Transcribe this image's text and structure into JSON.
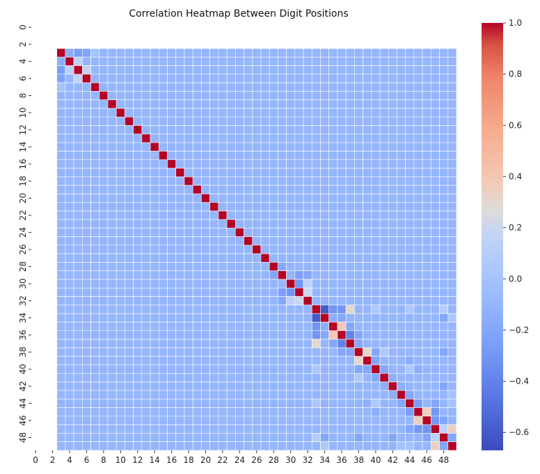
{
  "chart_data": {
    "type": "heatmap",
    "title": "Correlation Heatmap Between Digit Positions",
    "rows": 50,
    "cols": 50,
    "x_tick_labels": [
      "0",
      "2",
      "4",
      "6",
      "8",
      "10",
      "12",
      "14",
      "16",
      "18",
      "20",
      "22",
      "24",
      "26",
      "28",
      "30",
      "32",
      "34",
      "36",
      "38",
      "40",
      "42",
      "44",
      "46",
      "48"
    ],
    "y_tick_labels": [
      "0",
      "2",
      "4",
      "6",
      "8",
      "10",
      "12",
      "14",
      "16",
      "18",
      "20",
      "22",
      "24",
      "26",
      "28",
      "30",
      "32",
      "34",
      "36",
      "38",
      "40",
      "42",
      "44",
      "46",
      "48"
    ],
    "valid_range": [
      3,
      49
    ],
    "default_value": -0.1,
    "diagonal_value": 1.0,
    "notable_cells": [
      {
        "row": 3,
        "col": 6,
        "value": -0.22
      },
      {
        "row": 5,
        "col": 3,
        "value": -0.25
      },
      {
        "row": 3,
        "col": 7,
        "value": 0.05
      },
      {
        "row": 5,
        "col": 4,
        "value": 0.15
      },
      {
        "row": 6,
        "col": 5,
        "value": 0.15
      },
      {
        "row": 4,
        "col": 3,
        "value": -0.15
      },
      {
        "row": 7,
        "col": 3,
        "value": 0.0
      },
      {
        "row": 28,
        "col": 29,
        "value": -0.2
      },
      {
        "row": 29,
        "col": 31,
        "value": -0.25
      },
      {
        "row": 30,
        "col": 31,
        "value": -0.3
      },
      {
        "row": 31,
        "col": 32,
        "value": 0.15
      },
      {
        "row": 32,
        "col": 29,
        "value": -0.2
      },
      {
        "row": 32,
        "col": 30,
        "value": 0.15
      },
      {
        "row": 32,
        "col": 31,
        "value": 0.2
      },
      {
        "row": 33,
        "col": 34,
        "value": -0.6
      },
      {
        "row": 33,
        "col": 35,
        "value": -0.3
      },
      {
        "row": 33,
        "col": 36,
        "value": -0.3
      },
      {
        "row": 33,
        "col": 37,
        "value": 0.3
      },
      {
        "row": 34,
        "col": 35,
        "value": -0.15
      },
      {
        "row": 34,
        "col": 36,
        "value": -0.2
      },
      {
        "row": 35,
        "col": 36,
        "value": 0.4
      },
      {
        "row": 35,
        "col": 37,
        "value": -0.2
      },
      {
        "row": 36,
        "col": 37,
        "value": -0.4
      },
      {
        "row": 36,
        "col": 38,
        "value": -0.2
      },
      {
        "row": 37,
        "col": 38,
        "value": -0.2
      },
      {
        "row": 38,
        "col": 39,
        "value": 0.3
      },
      {
        "row": 38,
        "col": 40,
        "value": -0.2
      },
      {
        "row": 39,
        "col": 40,
        "value": -0.2
      },
      {
        "row": 40,
        "col": 41,
        "value": -0.2
      },
      {
        "row": 41,
        "col": 42,
        "value": -0.15
      },
      {
        "row": 42,
        "col": 43,
        "value": -0.15
      },
      {
        "row": 43,
        "col": 44,
        "value": -0.2
      },
      {
        "row": 44,
        "col": 45,
        "value": -0.25
      },
      {
        "row": 45,
        "col": 46,
        "value": 0.35
      },
      {
        "row": 45,
        "col": 47,
        "value": -0.3
      },
      {
        "row": 46,
        "col": 47,
        "value": -0.3
      },
      {
        "row": 46,
        "col": 48,
        "value": -0.2
      },
      {
        "row": 47,
        "col": 48,
        "value": 0.15
      },
      {
        "row": 47,
        "col": 49,
        "value": 0.35
      },
      {
        "row": 48,
        "col": 49,
        "value": -0.2
      },
      {
        "row": 33,
        "col": 40,
        "value": 0.05
      },
      {
        "row": 33,
        "col": 44,
        "value": 0.05
      },
      {
        "row": 33,
        "col": 48,
        "value": 0.1
      },
      {
        "row": 34,
        "col": 48,
        "value": -0.2
      },
      {
        "row": 34,
        "col": 49,
        "value": 0.05
      },
      {
        "row": 38,
        "col": 48,
        "value": -0.2
      },
      {
        "row": 38,
        "col": 41,
        "value": 0.05
      },
      {
        "row": 39,
        "col": 44,
        "value": -0.15
      },
      {
        "row": 40,
        "col": 45,
        "value": -0.15
      },
      {
        "row": 40,
        "col": 44,
        "value": 0.05
      },
      {
        "row": 42,
        "col": 48,
        "value": -0.2
      },
      {
        "row": 43,
        "col": 49,
        "value": 0.0
      },
      {
        "row": 44,
        "col": 47,
        "value": -0.2
      },
      {
        "row": 44,
        "col": 49,
        "value": 0.0
      }
    ],
    "colorbar": {
      "min": -0.67,
      "max": 1.0,
      "ticks": [
        "1.0",
        "0.8",
        "0.6",
        "0.4",
        "0.2",
        "0.0",
        "−0.2",
        "−0.4",
        "−0.6"
      ],
      "tick_values": [
        1.0,
        0.8,
        0.6,
        0.4,
        0.2,
        0.0,
        -0.2,
        -0.4,
        -0.6
      ]
    },
    "colormap": "coolwarm",
    "grid_lines": "white"
  }
}
